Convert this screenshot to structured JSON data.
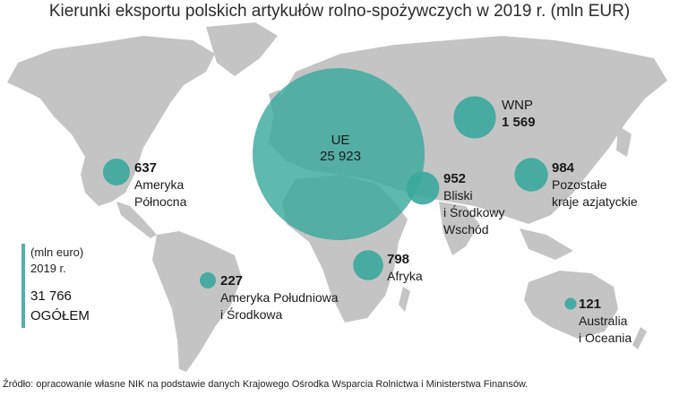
{
  "title": "Kierunki eksportu polskich artykułów rolno-spożywczych w 2019 r. (mln EUR)",
  "colors": {
    "land": "#c4c4c4",
    "bubble": "#3aa99e",
    "accent": "#4fb3a9"
  },
  "regions": [
    {
      "name": "UE",
      "value": "25 923",
      "value_num": 25923
    },
    {
      "name": "WNP",
      "value": "1 569",
      "value_num": 1569
    },
    {
      "name_lines": [
        "Ameryka",
        "Północna"
      ],
      "value": "637",
      "value_num": 637
    },
    {
      "name_lines": [
        "Bliski",
        "i Środkowy",
        "Wschód"
      ],
      "value": "952",
      "value_num": 952
    },
    {
      "name_lines": [
        "Pozostałe",
        "kraje azjatyckie"
      ],
      "value": "984",
      "value_num": 984
    },
    {
      "name_lines": [
        "Afryka"
      ],
      "value": "798",
      "value_num": 798
    },
    {
      "name_lines": [
        "Ameryka Południowa",
        "i Środkowa"
      ],
      "value": "227",
      "value_num": 227
    },
    {
      "name_lines": [
        "Australia",
        "i Oceania"
      ],
      "value": "121",
      "value_num": 121
    }
  ],
  "legend": {
    "unit": "(mln euro)",
    "year": "2019 r.",
    "total": "31 766",
    "total_label": "OGÓŁEM"
  },
  "source": "Źródło: opracowanie własne NIK na  podstawie danych Krajowego Ośrodka Wsparcia Rolnictwa i  Ministerstwa Finansów."
}
